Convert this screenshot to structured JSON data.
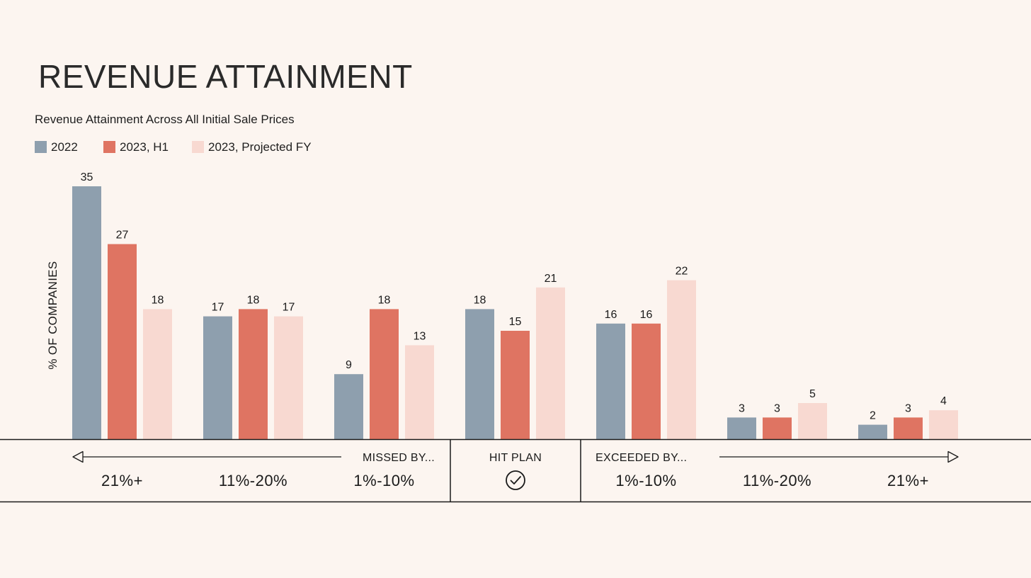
{
  "header": {
    "title": "REVENUE ATTAINMENT",
    "subtitle": "Revenue Attainment Across All Initial Sale Prices"
  },
  "legend": [
    {
      "label": "2022",
      "color": "#8e9fae"
    },
    {
      "label": "2023, H1",
      "color": "#df7462"
    },
    {
      "label": "2023, Projected FY",
      "color": "#f8d9d1"
    }
  ],
  "axis": {
    "missed_label": "MISSED BY...",
    "hit_label": "HIT PLAN",
    "exceeded_label": "EXCEEDED BY...",
    "check_icon": "check-circle-icon"
  },
  "chart_data": {
    "type": "bar",
    "title": "Revenue Attainment Across All Initial Sale Prices",
    "ylabel": "% OF COMPANIES",
    "xlabel": "",
    "ylim": [
      0,
      35
    ],
    "categories": [
      "21%+",
      "11%-20%",
      "1%-10%",
      "",
      "1%-10%",
      "11%-20%",
      "21%+"
    ],
    "category_groups": [
      "MISSED BY...",
      "MISSED BY...",
      "MISSED BY...",
      "HIT PLAN",
      "EXCEEDED BY...",
      "EXCEEDED BY...",
      "EXCEEDED BY..."
    ],
    "series": [
      {
        "name": "2022",
        "color": "#8e9fae",
        "values": [
          35,
          17,
          9,
          18,
          16,
          3,
          2
        ]
      },
      {
        "name": "2023, H1",
        "color": "#df7462",
        "values": [
          27,
          18,
          18,
          15,
          16,
          3,
          3
        ]
      },
      {
        "name": "2023, Projected FY",
        "color": "#f8d9d1",
        "values": [
          18,
          17,
          13,
          21,
          22,
          5,
          4
        ]
      }
    ],
    "grid": false,
    "legend_position": "top-left"
  }
}
